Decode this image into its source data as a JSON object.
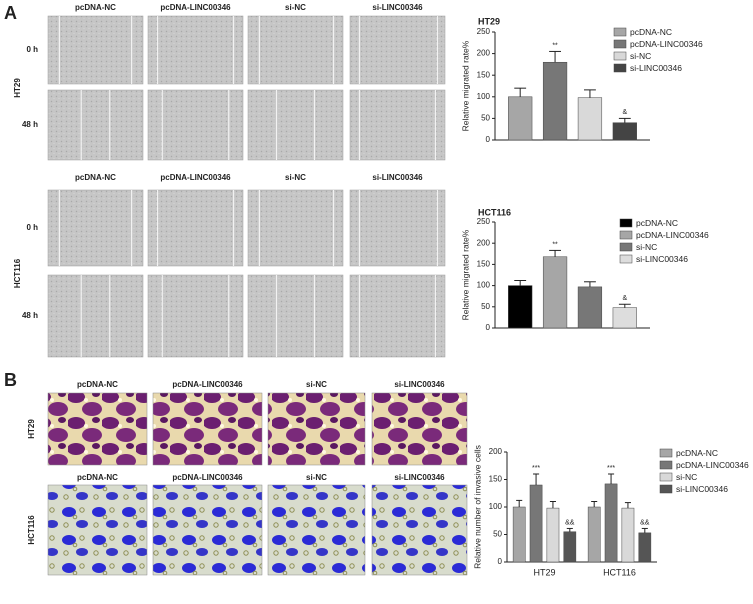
{
  "chart_data": [
    {
      "type": "bar",
      "title": "HT29",
      "y_label": "Relative migrated rate%",
      "ylim": [
        0,
        250
      ],
      "yticks": [
        0,
        50,
        100,
        150,
        200,
        250
      ],
      "series": [
        {
          "name": "pcDNA-NC",
          "color": "#a6a6a6",
          "values": [
            100
          ],
          "errors": [
            20
          ]
        },
        {
          "name": "pcDNA-LINC00346",
          "color": "#777777",
          "values": [
            180
          ],
          "errors": [
            25
          ],
          "annotations": [
            "**"
          ]
        },
        {
          "name": "si-NC",
          "color": "#d9d9d9",
          "values": [
            98
          ],
          "errors": [
            18
          ]
        },
        {
          "name": "si-LINC00346",
          "color": "#444444",
          "values": [
            40
          ],
          "errors": [
            10
          ],
          "annotations": [
            "&"
          ]
        }
      ]
    },
    {
      "type": "bar",
      "title": "HCT116",
      "y_label": "Relative migrated rate%",
      "ylim": [
        0,
        250
      ],
      "yticks": [
        0,
        50,
        100,
        150,
        200,
        250
      ],
      "series": [
        {
          "name": "pcDNA-NC",
          "color": "#000000",
          "values": [
            100
          ],
          "errors": [
            12
          ]
        },
        {
          "name": "pcDNA-LINC00346",
          "color": "#a6a6a6",
          "values": [
            168
          ],
          "errors": [
            15
          ],
          "annotations": [
            "**"
          ]
        },
        {
          "name": "si-NC",
          "color": "#777777",
          "values": [
            97
          ],
          "errors": [
            12
          ]
        },
        {
          "name": "si-LINC00346",
          "color": "#dddddd",
          "values": [
            48
          ],
          "errors": [
            8
          ],
          "annotations": [
            "&"
          ]
        }
      ]
    },
    {
      "type": "bar",
      "y_label": "Relative number of invasive cells",
      "categories": [
        "HT29",
        "HCT116"
      ],
      "ylim": [
        0,
        200
      ],
      "yticks": [
        0,
        50,
        100,
        150,
        200
      ],
      "series": [
        {
          "name": "pcDNA-NC",
          "color": "#a6a6a6",
          "values": [
            100,
            100
          ],
          "errors": [
            12,
            10
          ]
        },
        {
          "name": "pcDNA-LINC00346",
          "color": "#777777",
          "values": [
            140,
            142
          ],
          "errors": [
            20,
            18
          ],
          "annotations": [
            "***",
            "***"
          ]
        },
        {
          "name": "si-NC",
          "color": "#d9d9d9",
          "values": [
            98,
            98
          ],
          "errors": [
            12,
            10
          ]
        },
        {
          "name": "si-LINC00346",
          "color": "#555555",
          "values": [
            55,
            53
          ],
          "errors": [
            6,
            8
          ],
          "annotations": [
            "&&",
            "&&"
          ]
        }
      ]
    }
  ],
  "figure": {
    "panel_labels": [
      "A",
      "B"
    ],
    "migration": [
      {
        "label": "HT29",
        "columns": [
          "pcDNA-NC",
          "pcDNA-LINC00346",
          "si-NC",
          "si-LINC00346"
        ],
        "rows": [
          "0 h",
          "48 h"
        ]
      },
      {
        "label": "HCT116",
        "columns": [
          "pcDNA-NC",
          "pcDNA-LINC00346",
          "si-NC",
          "si-LINC00346"
        ],
        "rows": [
          "0 h",
          "48 h"
        ]
      }
    ],
    "invasion": [
      {
        "label": "HT29",
        "columns": [
          "pcDNA-NC",
          "pcDNA-LINC00346",
          "si-NC",
          "si-LINC00346"
        ]
      },
      {
        "label": "HCT116",
        "columns": [
          "pcDNA-NC",
          "pcDNA-LINC00346",
          "si-NC",
          "si-LINC00346"
        ]
      }
    ]
  }
}
